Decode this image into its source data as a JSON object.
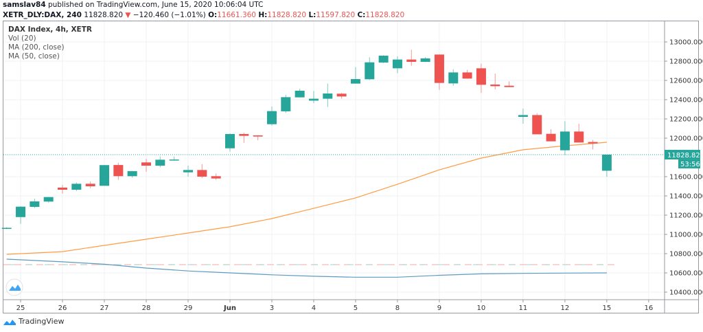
{
  "header": {
    "author": "samslav84",
    "published": "published on TradingView.com, June 15, 2020 10:06:04 UTC",
    "symbol": "XETR_DLY:DAX, 240",
    "last": "11828.820",
    "change": "−120.460 (−1.01%)",
    "change_direction": "down",
    "ohlc": [
      {
        "label": "O:",
        "value": "11661.360"
      },
      {
        "label": "H:",
        "value": "11828.820"
      },
      {
        "label": "L:",
        "value": "11597.820"
      },
      {
        "label": "C:",
        "value": "11828.820"
      }
    ]
  },
  "legend": {
    "title": "DAX Index, 4h, XETR",
    "indicators": [
      "Vol (20)",
      "MA (200, close)",
      "MA (50, close)"
    ]
  },
  "price_axis": {
    "ticks": [
      "13000.000",
      "12800.000",
      "12600.000",
      "12400.000",
      "12200.000",
      "12000.000",
      "11600.000",
      "11400.000",
      "11200.000",
      "11000.000",
      "10800.000",
      "10600.000",
      "10400.000"
    ],
    "last_price_label": "11828.820",
    "countdown": "53:56"
  },
  "time_axis": {
    "labels": [
      "25",
      "26",
      "27",
      "28",
      "29",
      "Jun",
      "3",
      "4",
      "5",
      "8",
      "9",
      "10",
      "11",
      "12",
      "15",
      "16"
    ],
    "bold": [
      "Jun"
    ]
  },
  "colors": {
    "up": "#26a69a",
    "down": "#ef5350",
    "ma50": "#ff9c42",
    "ma200": "#5d9ac0"
  },
  "footer": {
    "brand": "TradingView"
  },
  "chart_data": {
    "type": "candlestick",
    "ylim": [
      10330,
      13180
    ],
    "last_price": 11828.82,
    "candles": [
      [
        11065,
        11075,
        11055,
        11068
      ],
      [
        11180,
        11293,
        11110,
        11288
      ],
      [
        11286,
        11371,
        11274,
        11343
      ],
      [
        11341,
        11390,
        11330,
        11388
      ],
      [
        11486,
        11514,
        11424,
        11464
      ],
      [
        11464,
        11540,
        11450,
        11526
      ],
      [
        11526,
        11550,
        11480,
        11500
      ],
      [
        11505,
        11721,
        11510,
        11720
      ],
      [
        11721,
        11745,
        11567,
        11605
      ],
      [
        11605,
        11660,
        11590,
        11657
      ],
      [
        11748,
        11786,
        11650,
        11714
      ],
      [
        11714,
        11810,
        11698,
        11776
      ],
      [
        11771,
        11810,
        11765,
        11778
      ],
      [
        11645,
        11715,
        11600,
        11669
      ],
      [
        11669,
        11729,
        11586,
        11600
      ],
      [
        11605,
        11633,
        11567,
        11581
      ],
      [
        11895,
        12050,
        11860,
        12043
      ],
      [
        12043,
        12055,
        11952,
        12024
      ],
      [
        12029,
        12030,
        11978,
        12017
      ],
      [
        12145,
        12329,
        12131,
        12281
      ],
      [
        12279,
        12450,
        12262,
        12426
      ],
      [
        12424,
        12514,
        12424,
        12493
      ],
      [
        12390,
        12490,
        12364,
        12410
      ],
      [
        12410,
        12567,
        12324,
        12464
      ],
      [
        12462,
        12470,
        12410,
        12433
      ],
      [
        12567,
        12738,
        12567,
        12614
      ],
      [
        12612,
        12840,
        12605,
        12788
      ],
      [
        12786,
        12862,
        12780,
        12857
      ],
      [
        12726,
        12850,
        12676,
        12817
      ],
      [
        12817,
        12919,
        12752,
        12793
      ],
      [
        12793,
        12843,
        12790,
        12829
      ],
      [
        12869,
        12869,
        12502,
        12574
      ],
      [
        12569,
        12717,
        12545,
        12683
      ],
      [
        12683,
        12710,
        12619,
        12619
      ],
      [
        12726,
        12774,
        12471,
        12555
      ],
      [
        12557,
        12671,
        12507,
        12540
      ],
      [
        12545,
        12590,
        12531,
        12531
      ],
      [
        12221,
        12307,
        12150,
        12240
      ],
      [
        12240,
        12260,
        12040,
        12040
      ],
      [
        12045,
        12093,
        11967,
        11967
      ],
      [
        11874,
        12176,
        11824,
        12069
      ],
      [
        12069,
        12150,
        11955,
        11955
      ],
      [
        11960,
        11983,
        11883,
        11945
      ],
      [
        11661.36,
        11828.82,
        11597.82,
        11828.82
      ]
    ],
    "ma50": {
      "bars": [
        0,
        4,
        7,
        10,
        13,
        16,
        19,
        22,
        25,
        28,
        31,
        34,
        37,
        40,
        43
      ],
      "values": [
        10793,
        10821,
        10886,
        10950,
        11014,
        11079,
        11164,
        11271,
        11379,
        11521,
        11671,
        11793,
        11879,
        11921,
        11957
      ]
    },
    "ma200": {
      "bars": [
        0,
        4,
        7,
        10,
        13,
        16,
        19,
        22,
        25,
        28,
        31,
        34,
        37,
        40,
        43
      ],
      "values": [
        10743,
        10715,
        10690,
        10650,
        10620,
        10600,
        10580,
        10565,
        10555,
        10555,
        10575,
        10590,
        10595,
        10598,
        10600
      ]
    }
  }
}
